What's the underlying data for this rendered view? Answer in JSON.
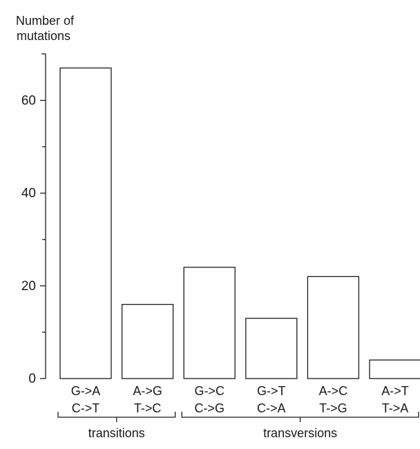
{
  "chart_data": {
    "type": "bar",
    "ylabel": [
      "Number of",
      "mutations"
    ],
    "yticks": [
      0,
      20,
      40,
      60
    ],
    "ylim": [
      0,
      70
    ],
    "grid": false,
    "categories": [
      [
        "G->A",
        "C->T"
      ],
      [
        "A->G",
        "T->C"
      ],
      [
        "G->C",
        "C->G"
      ],
      [
        "G->T",
        "C->A"
      ],
      [
        "A->C",
        "T->G"
      ],
      [
        "A->T",
        "T->A"
      ]
    ],
    "values": [
      67,
      16,
      24,
      13,
      22,
      4
    ],
    "groups": [
      {
        "label": "transitions",
        "first": 0,
        "last": 1
      },
      {
        "label": "transversions",
        "first": 2,
        "last": 5
      }
    ],
    "colors": {
      "bar_fill": "#ffffff",
      "stroke": "#1a1a1a"
    }
  }
}
